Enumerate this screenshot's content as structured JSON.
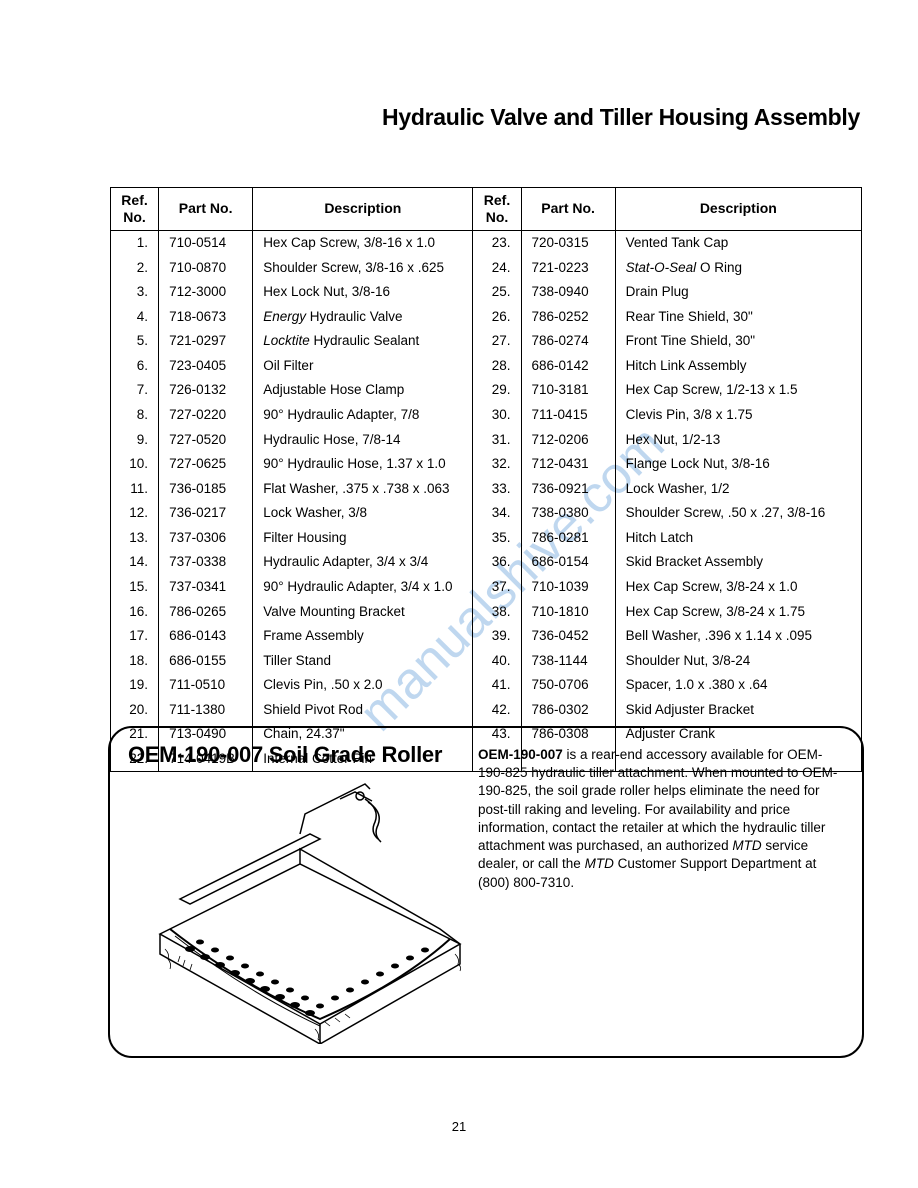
{
  "page_title": "Hydraulic Valve and Tiller Housing Assembly",
  "page_number": "21",
  "table": {
    "headers": {
      "ref": "Ref.\nNo.",
      "part": "Part No.",
      "desc": "Description"
    },
    "left": [
      {
        "ref": "1.",
        "part": "710-0514",
        "desc": "Hex Cap Screw, 3/8-16 x 1.0"
      },
      {
        "ref": "2.",
        "part": "710-0870",
        "desc": "Shoulder Screw, 3/8-16 x .625"
      },
      {
        "ref": "3.",
        "part": "712-3000",
        "desc": "Hex Lock Nut, 3/8-16"
      },
      {
        "ref": "4.",
        "part": "718-0673",
        "desc": "<i>Energy</i> Hydraulic Valve"
      },
      {
        "ref": "5.",
        "part": "721-0297",
        "desc": "<i>Locktite</i> Hydraulic Sealant"
      },
      {
        "ref": "6.",
        "part": "723-0405",
        "desc": "Oil Filter"
      },
      {
        "ref": "7.",
        "part": "726-0132",
        "desc": "Adjustable Hose Clamp"
      },
      {
        "ref": "8.",
        "part": "727-0220",
        "desc": "90° Hydraulic Adapter, 7/8"
      },
      {
        "ref": "9.",
        "part": "727-0520",
        "desc": "Hydraulic Hose, 7/8-14"
      },
      {
        "ref": "10.",
        "part": "727-0625",
        "desc": "90° Hydraulic Hose, 1.37 x 1.0"
      },
      {
        "ref": "11.",
        "part": "736-0185",
        "desc": "Flat Washer, .375 x .738 x .063"
      },
      {
        "ref": "12.",
        "part": "736-0217",
        "desc": "Lock Washer, 3/8"
      },
      {
        "ref": "13.",
        "part": "737-0306",
        "desc": "Filter Housing"
      },
      {
        "ref": "14.",
        "part": "737-0338",
        "desc": "Hydraulic Adapter, 3/4 x 3/4"
      },
      {
        "ref": "15.",
        "part": "737-0341",
        "desc": "90° Hydraulic Adapter, 3/4 x 1.0"
      },
      {
        "ref": "16.",
        "part": "786-0265",
        "desc": "Valve Mounting Bracket"
      },
      {
        "ref": "17.",
        "part": "686-0143",
        "desc": "Frame Assembly"
      },
      {
        "ref": "18.",
        "part": "686-0155",
        "desc": "Tiller Stand"
      },
      {
        "ref": "19.",
        "part": "711-0510",
        "desc": "Clevis Pin, .50 x 2.0"
      },
      {
        "ref": "20.",
        "part": "711-1380",
        "desc": "Shield Pivot Rod"
      },
      {
        "ref": "21.",
        "part": "713-0490",
        "desc": "Chain, 24.37\""
      },
      {
        "ref": "22.",
        "part": "714-0419B",
        "desc": "Internal Cotter Pin"
      }
    ],
    "right": [
      {
        "ref": "23.",
        "part": "720-0315",
        "desc": "Vented Tank Cap"
      },
      {
        "ref": "24.",
        "part": "721-0223",
        "desc": "<i>Stat-O-Seal</i> O Ring"
      },
      {
        "ref": "25.",
        "part": "738-0940",
        "desc": "Drain Plug"
      },
      {
        "ref": "26.",
        "part": "786-0252",
        "desc": "Rear Tine Shield, 30\""
      },
      {
        "ref": "27.",
        "part": "786-0274",
        "desc": "Front Tine Shield, 30\""
      },
      {
        "ref": "28.",
        "part": "686-0142",
        "desc": "Hitch Link Assembly"
      },
      {
        "ref": "29.",
        "part": "710-3181",
        "desc": "Hex Cap Screw, 1/2-13 x 1.5"
      },
      {
        "ref": "30.",
        "part": "711-0415",
        "desc": "Clevis Pin, 3/8 x 1.75"
      },
      {
        "ref": "31.",
        "part": "712-0206",
        "desc": "Hex Nut, 1/2-13"
      },
      {
        "ref": "32.",
        "part": "712-0431",
        "desc": "Flange Lock Nut, 3/8-16"
      },
      {
        "ref": "33.",
        "part": "736-0921",
        "desc": "Lock Washer, 1/2"
      },
      {
        "ref": "34.",
        "part": "738-0380",
        "desc": "Shoulder Screw, .50 x .27, 3/8-16"
      },
      {
        "ref": "35.",
        "part": "786-0281",
        "desc": "Hitch Latch"
      },
      {
        "ref": "36.",
        "part": "686-0154",
        "desc": "Skid Bracket Assembly"
      },
      {
        "ref": "37.",
        "part": "710-1039",
        "desc": "Hex Cap Screw, 3/8-24 x 1.0"
      },
      {
        "ref": "38.",
        "part": "710-1810",
        "desc": "Hex Cap Screw, 3/8-24 x 1.75"
      },
      {
        "ref": "39.",
        "part": "736-0452",
        "desc": "Bell Washer, .396 x 1.14 x .095"
      },
      {
        "ref": "40.",
        "part": "738-1144",
        "desc": "Shoulder Nut, 3/8-24"
      },
      {
        "ref": "41.",
        "part": "750-0706",
        "desc": "Spacer, 1.0 x .380 x .64"
      },
      {
        "ref": "42.",
        "part": "786-0302",
        "desc": "Skid Adjuster Bracket"
      },
      {
        "ref": "43.",
        "part": "786-0308",
        "desc": "Adjuster Crank"
      },
      {
        "ref": "",
        "part": "",
        "desc": ""
      }
    ]
  },
  "callout": {
    "title": "OEM-190-007 Soil Grade Roller",
    "body": "<b>OEM-190-007</b> is a rear-end accessory available for OEM-190-825 hydraulic tiller attachment. When mounted to OEM-190-825, the soil grade roller helps eliminate the need for post-till raking and leveling. For availability and price information, contact the retailer at which the hydraulic tiller attachment was purchased, an authorized <i>MTD</i> service dealer, or call the <i>MTD</i> Customer Support Department at (800) 800-7310."
  },
  "watermark": "manualshive.com",
  "colors": {
    "text": "#000000",
    "background": "#ffffff",
    "watermark": "#4a8fd4"
  }
}
